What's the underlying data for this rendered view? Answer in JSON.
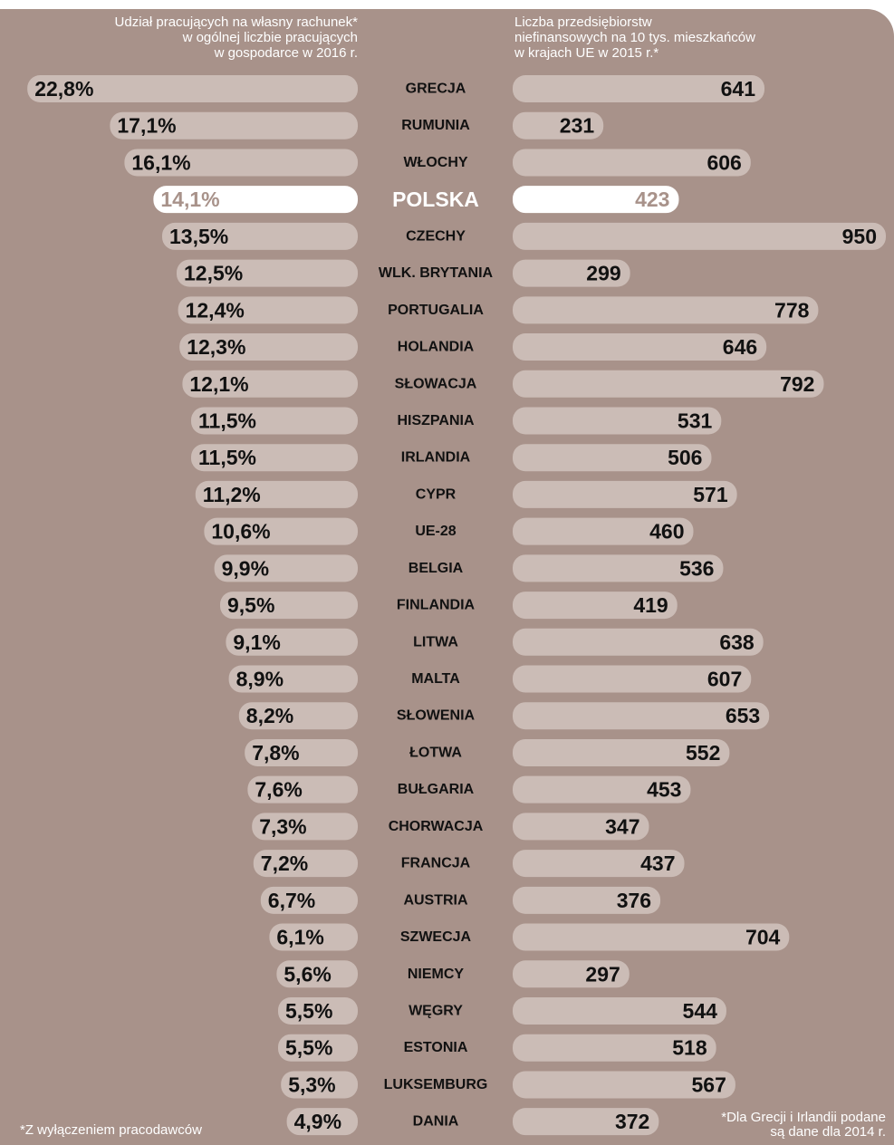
{
  "chart_data": {
    "type": "bar",
    "categories": [
      "GRECJA",
      "RUMUNIA",
      "WŁOCHY",
      "POLSKA",
      "CZECHY",
      "WLK. BRYTANIA",
      "PORTUGALIA",
      "HOLANDIA",
      "SŁOWACJA",
      "HISZPANIA",
      "IRLANDIA",
      "CYPR",
      "UE-28",
      "BELGIA",
      "FINLANDIA",
      "LITWA",
      "MALTA",
      "SŁOWENIA",
      "ŁOTWA",
      "BUŁGARIA",
      "CHORWACJA",
      "FRANCJA",
      "AUSTRIA",
      "SZWECJA",
      "NIEMCY",
      "WĘGRY",
      "ESTONIA",
      "LUKSEMBURG",
      "DANIA"
    ],
    "highlight_index": 3,
    "color": "#cbbcb6",
    "highlight_color": "#ffffff",
    "background": "#a8928a",
    "series": [
      {
        "name": "Udział pracujących na własny rachunek*\nw ogólnej liczbie pracujących\nw gospodarce w 2016 r.",
        "side": "left",
        "xlim": [
          0,
          23
        ],
        "values": [
          22.8,
          17.1,
          16.1,
          14.1,
          13.5,
          12.5,
          12.4,
          12.3,
          12.1,
          11.5,
          11.5,
          11.2,
          10.6,
          9.9,
          9.5,
          9.1,
          8.9,
          8.2,
          7.8,
          7.6,
          7.3,
          7.2,
          6.7,
          6.1,
          5.6,
          5.5,
          5.5,
          5.3,
          4.9
        ],
        "value_labels": [
          "22,8%",
          "17,1%",
          "16,1%",
          "14,1%",
          "13,5%",
          "12,5%",
          "12,4%",
          "12,3%",
          "12,1%",
          "11,5%",
          "11,5%",
          "11,2%",
          "10,6%",
          "9,9%",
          "9,5%",
          "9,1%",
          "8,9%",
          "8,2%",
          "7,8%",
          "7,6%",
          "7,3%",
          "7,2%",
          "6,7%",
          "6,1%",
          "5,6%",
          "5,5%",
          "5,5%",
          "5,3%",
          "4,9%"
        ]
      },
      {
        "name": "Liczba przedsiębiorstw\nniefinansowych na 10 tys. mieszkańców\nw krajach UE w 2015 r.*",
        "side": "right",
        "xlim": [
          0,
          950
        ],
        "values": [
          641,
          231,
          606,
          423,
          950,
          299,
          778,
          646,
          792,
          531,
          506,
          571,
          460,
          536,
          419,
          638,
          607,
          653,
          552,
          453,
          347,
          437,
          376,
          704,
          297,
          544,
          518,
          567,
          372
        ]
      }
    ],
    "annotations": [
      "*Z wyłączeniem pracodawców",
      "*Dla Grecji i Irlandii podane\nsą dane dla 2014 r."
    ]
  }
}
